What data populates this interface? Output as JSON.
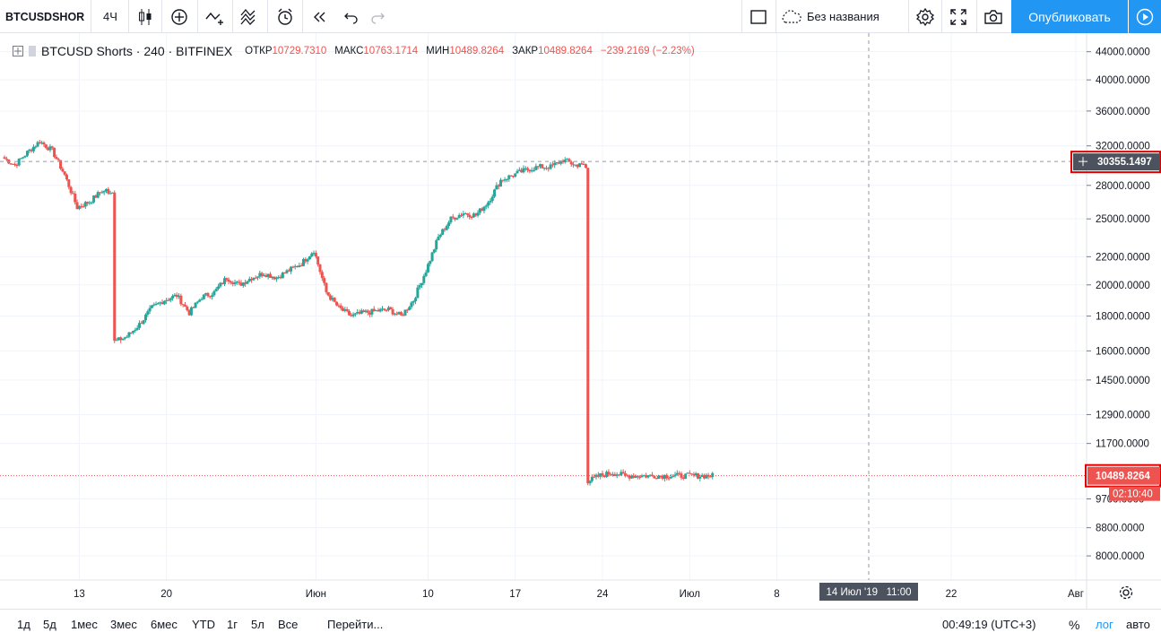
{
  "toolbar": {
    "symbol": "BTCUSDSHORTS",
    "interval": "4Ч",
    "layout_name": "Без названия",
    "publish_label": "Опубликовать",
    "icons": [
      "candles-icon",
      "indicators-icon",
      "compare-icon",
      "templates-icon",
      "alert-icon",
      "replay-icon",
      "undo-icon",
      "redo-icon",
      "fullscreen-toggle-icon",
      "cloud-icon",
      "settings-icon",
      "expand-icon",
      "snapshot-icon",
      "play-icon"
    ]
  },
  "legend": {
    "title": "BTCUSD Shorts · 240 · BITFINEX",
    "open_label": "ОТКР",
    "open": "10729.7310",
    "high_label": "МАКС",
    "high": "10763.1714",
    "low_label": "МИН",
    "low": "10489.8264",
    "close_label": "ЗАКР",
    "close": "10489.8264",
    "change": "−239.2169 (−2.23%)"
  },
  "price_axis": {
    "ticks": [
      "44000.0000",
      "40000.0000",
      "36000.0000",
      "32000.0000",
      "28000.0000",
      "25000.0000",
      "22000.0000",
      "20000.0000",
      "18000.0000",
      "16000.0000",
      "14500.0000",
      "12900.0000",
      "11700.0000",
      "9700.0000",
      "8800.0000",
      "8000.0000"
    ],
    "crosshair_price": "30355.1497",
    "last_price": "10489.8264",
    "countdown": "02:10:40"
  },
  "time_axis": {
    "ticks": [
      "13",
      "20",
      "Июн",
      "10",
      "17",
      "24",
      "Июл",
      "8",
      "22",
      "Авг"
    ],
    "crosshair_label": "14 Июл '19   11:00"
  },
  "bottom_bar": {
    "ranges": [
      "1д",
      "5д",
      "1мес",
      "3мес",
      "6мес",
      "YTD",
      "1г",
      "5л",
      "Все"
    ],
    "goto_label": "Перейти...",
    "clock": "00:49:19 (UTC+3)",
    "percent_label": "%",
    "log_label": "лог",
    "auto_label": "авто"
  },
  "colors": {
    "up": "#26a69a",
    "down": "#ef5350",
    "accent": "#2196f3",
    "highlight_box": "#e00000"
  },
  "chart_data": {
    "type": "line",
    "title": "BTCUSD Shorts · 240 · BITFINEX",
    "scale": "log",
    "x_range": [
      "2019-05-07",
      "2019-08-01"
    ],
    "ylim": [
      7600,
      46000
    ],
    "grid": true,
    "series": [
      {
        "name": "BTCUSD Shorts",
        "x": [
          "2019-05-07",
          "2019-05-08",
          "2019-05-09",
          "2019-05-10",
          "2019-05-11",
          "2019-05-12",
          "2019-05-13",
          "2019-05-14",
          "2019-05-15",
          "2019-05-16",
          "2019-05-17",
          "2019-05-18",
          "2019-05-19",
          "2019-05-20",
          "2019-05-21",
          "2019-05-22",
          "2019-05-23",
          "2019-05-24",
          "2019-05-25",
          "2019-05-26",
          "2019-05-27",
          "2019-05-28",
          "2019-05-29",
          "2019-05-30",
          "2019-05-31",
          "2019-06-01",
          "2019-06-02",
          "2019-06-03",
          "2019-06-04",
          "2019-06-05",
          "2019-06-06",
          "2019-06-07",
          "2019-06-08",
          "2019-06-09",
          "2019-06-10",
          "2019-06-11",
          "2019-06-12",
          "2019-06-13",
          "2019-06-14",
          "2019-06-15",
          "2019-06-16",
          "2019-06-17",
          "2019-06-18",
          "2019-06-19",
          "2019-06-20",
          "2019-06-21",
          "2019-06-22",
          "2019-06-23",
          "2019-06-24",
          "2019-06-25",
          "2019-06-26",
          "2019-06-27",
          "2019-06-28",
          "2019-06-29",
          "2019-06-30",
          "2019-07-01",
          "2019-07-02",
          "2019-07-03"
        ],
        "values": [
          30800,
          30000,
          31300,
          32500,
          31500,
          29000,
          26000,
          26500,
          27500,
          16500,
          16800,
          17500,
          18500,
          19000,
          19300,
          18200,
          19200,
          19500,
          20500,
          20000,
          20500,
          20800,
          20500,
          21000,
          21500,
          22500,
          19500,
          18500,
          18000,
          18200,
          18300,
          18400,
          18000,
          19000,
          21000,
          23500,
          25000,
          25500,
          25300,
          26500,
          28500,
          29000,
          29500,
          29800,
          29800,
          30500,
          30000,
          10300,
          10500,
          10600,
          10490,
          10490,
          10490,
          10490,
          10490,
          10490,
          10490,
          10490
        ]
      }
    ]
  }
}
